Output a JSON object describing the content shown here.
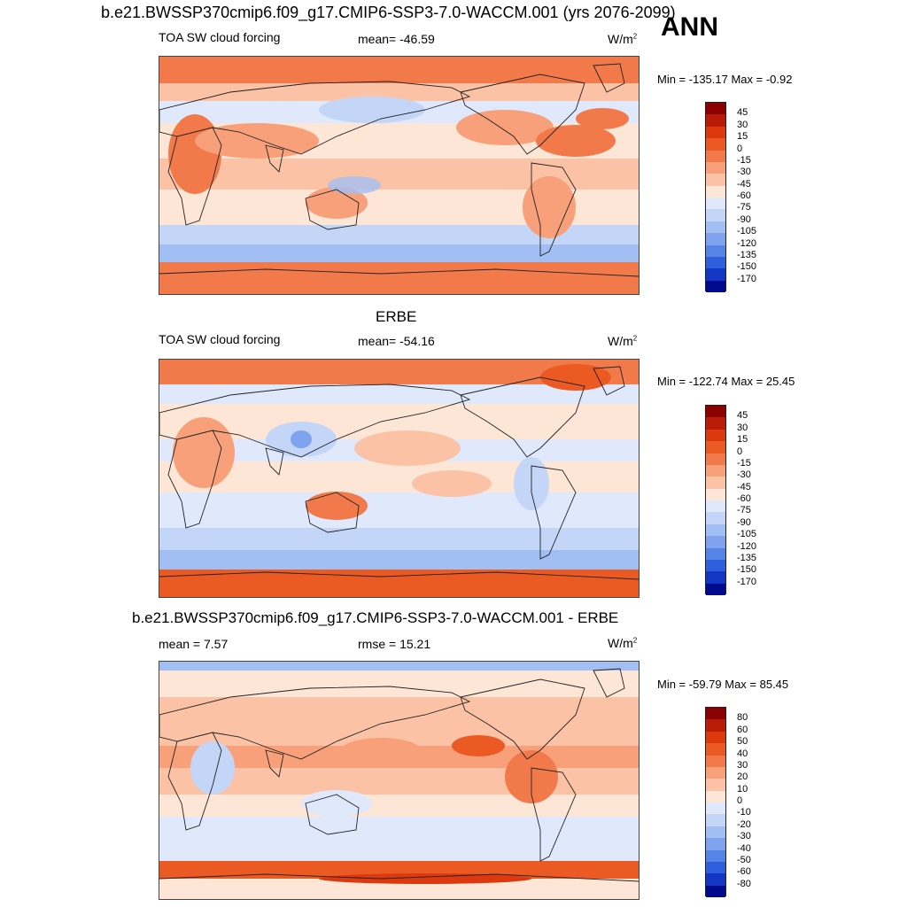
{
  "page": {
    "title": "b.e21.BWSSP370cmip6.f09_g17.CMIP6-SSP3-7.0-WACCM.001 (yrs 2076-2099)",
    "season": "ANN"
  },
  "panels": [
    {
      "title": "",
      "left_label": "TOA SW cloud forcing",
      "center_label": "mean= -46.59",
      "units": "W/m",
      "units_sup": "2",
      "minmax": "Min = -135.17 Max =  -0.92",
      "colorbar_levels": [
        "45",
        "30",
        "15",
        "0",
        "-15",
        "-30",
        "-45",
        "-60",
        "-75",
        "-90",
        "-105",
        "-120",
        "-135",
        "-150",
        "-170"
      ]
    },
    {
      "title": "ERBE",
      "left_label": "TOA SW cloud forcing",
      "center_label": "mean= -54.16",
      "units": "W/m",
      "units_sup": "2",
      "minmax": "Min = -122.74 Max =  25.45",
      "colorbar_levels": [
        "45",
        "30",
        "15",
        "0",
        "-15",
        "-30",
        "-45",
        "-60",
        "-75",
        "-90",
        "-105",
        "-120",
        "-135",
        "-150",
        "-170"
      ]
    },
    {
      "title": "b.e21.BWSSP370cmip6.f09_g17.CMIP6-SSP3-7.0-WACCM.001 - ERBE",
      "left_label": "mean =   7.57",
      "center_label": "rmse =  15.21",
      "units": "W/m",
      "units_sup": "2",
      "minmax": "Min = -59.79 Max =  85.45",
      "colorbar_levels": [
        "80",
        "60",
        "50",
        "40",
        "30",
        "20",
        "10",
        "0",
        "-10",
        "-20",
        "-30",
        "-40",
        "-50",
        "-60",
        "-80"
      ]
    }
  ],
  "colors": {
    "scale_16": [
      "#8b0000",
      "#b81c06",
      "#dc3a0e",
      "#ec5a24",
      "#f27a4a",
      "#f8a07a",
      "#fbc2a6",
      "#fde6d6",
      "#dfe9fb",
      "#c3d6f8",
      "#a2bff4",
      "#7fa3ee",
      "#5583e6",
      "#2e5fdc",
      "#1436c4",
      "#000a8c"
    ],
    "coast": "#222222"
  }
}
